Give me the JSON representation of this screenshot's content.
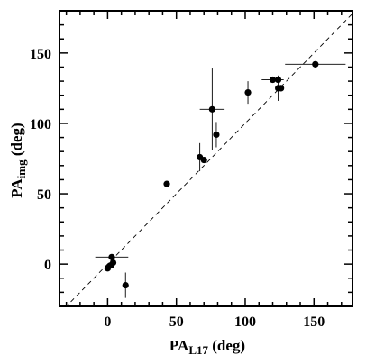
{
  "chart_data": {
    "type": "scatter",
    "title": "",
    "xlabel": {
      "main": "PA",
      "sub": "L17",
      "unit": " (deg)"
    },
    "ylabel": {
      "main": "PA",
      "sub": "img",
      "unit": " (deg)"
    },
    "xlim": [
      -35,
      178
    ],
    "ylim": [
      -30,
      180
    ],
    "x_ticks": [
      0,
      50,
      100,
      150
    ],
    "y_ticks": [
      0,
      50,
      100,
      150
    ],
    "x_tick_labels": [
      "0",
      "50",
      "100",
      "150"
    ],
    "y_tick_labels": [
      "0",
      "50",
      "100",
      "150"
    ],
    "grid": false,
    "reference_line": {
      "type": "y=x",
      "style": "dashed"
    },
    "points": [
      {
        "x": 3,
        "y": 5,
        "xerr": 12,
        "yerr": 0
      },
      {
        "x": 0,
        "y": -3,
        "xerr": 0,
        "yerr": 0
      },
      {
        "x": 2,
        "y": -1,
        "xerr": 0,
        "yerr": 0
      },
      {
        "x": 4,
        "y": 1,
        "xerr": 0,
        "yerr": 4
      },
      {
        "x": 13,
        "y": -15,
        "xerr": 0,
        "yerr": 9
      },
      {
        "x": 43,
        "y": 57,
        "xerr": 0,
        "yerr": 0
      },
      {
        "x": 67,
        "y": 76,
        "xerr": 0,
        "yerr": 10
      },
      {
        "x": 70,
        "y": 74,
        "xerr": 0,
        "yerr": 0
      },
      {
        "x": 76,
        "y": 110,
        "xerr": 9,
        "yerr": 29
      },
      {
        "x": 79,
        "y": 92,
        "xerr": 0,
        "yerr": 9
      },
      {
        "x": 102,
        "y": 122,
        "xerr": 0,
        "yerr": 8
      },
      {
        "x": 120,
        "y": 131,
        "xerr": 8,
        "yerr": 0
      },
      {
        "x": 124,
        "y": 131,
        "xerr": 0,
        "yerr": 0
      },
      {
        "x": 124,
        "y": 125,
        "xerr": 0,
        "yerr": 9
      },
      {
        "x": 126,
        "y": 125,
        "xerr": 0,
        "yerr": 0
      },
      {
        "x": 151,
        "y": 142,
        "xerr": 22,
        "yerr": 0
      }
    ]
  }
}
